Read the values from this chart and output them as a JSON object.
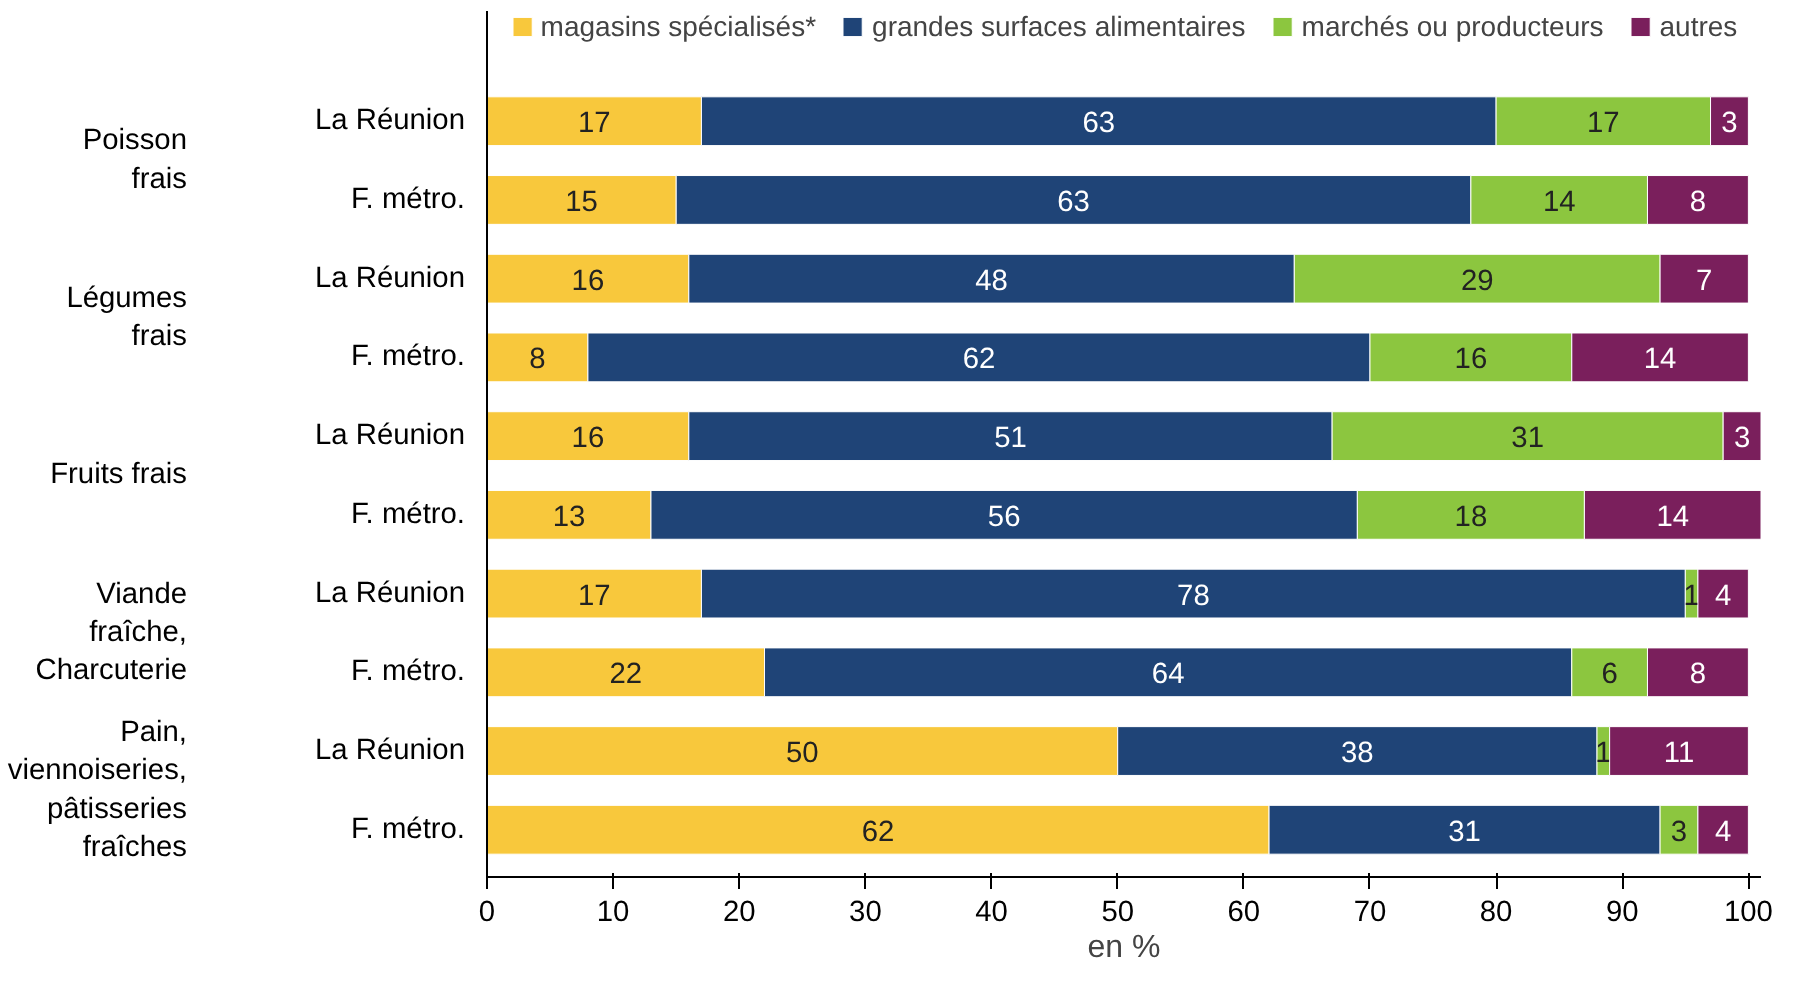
{
  "chart_data": {
    "type": "bar",
    "orientation": "horizontal",
    "stacked": true,
    "categories": [
      "La Réunion",
      "F. métro.",
      "La Réunion",
      "F. métro.",
      "La Réunion",
      "F. métro.",
      "La Réunion",
      "F. métro.",
      "La Réunion",
      "F. métro."
    ],
    "series": [
      {
        "name": "magasins spécialisés*",
        "color": "#f8c83c",
        "values": [
          17,
          15,
          16,
          8,
          16,
          13,
          17,
          22,
          50,
          62
        ]
      },
      {
        "name": "grandes surfaces alimentaires",
        "color": "#1f4477",
        "values": [
          63,
          63,
          48,
          62,
          51,
          56,
          78,
          64,
          38,
          31
        ]
      },
      {
        "name": "marchés ou producteurs",
        "color": "#8cc63f",
        "values": [
          17,
          14,
          29,
          16,
          31,
          18,
          1,
          6,
          1,
          3
        ]
      },
      {
        "name": "autres",
        "color": "#7a1f5c",
        "values": [
          3,
          8,
          7,
          14,
          3,
          14,
          4,
          8,
          11,
          4
        ]
      }
    ],
    "annotations": [
      "Poisson\nfrais",
      "Légumes\nfrais",
      "Fruits frais",
      "Viande\nfraîche,\nCharcuterie",
      "Pain,\nviennoiseries,\npâtisseries\nfraîches"
    ],
    "xlabel": "en %",
    "xlim": [
      0,
      101
    ],
    "xticks": [
      0,
      10,
      20,
      30,
      40,
      50,
      60,
      70,
      80,
      90,
      100
    ],
    "data_labels": true,
    "legend": "top",
    "grid": false
  }
}
